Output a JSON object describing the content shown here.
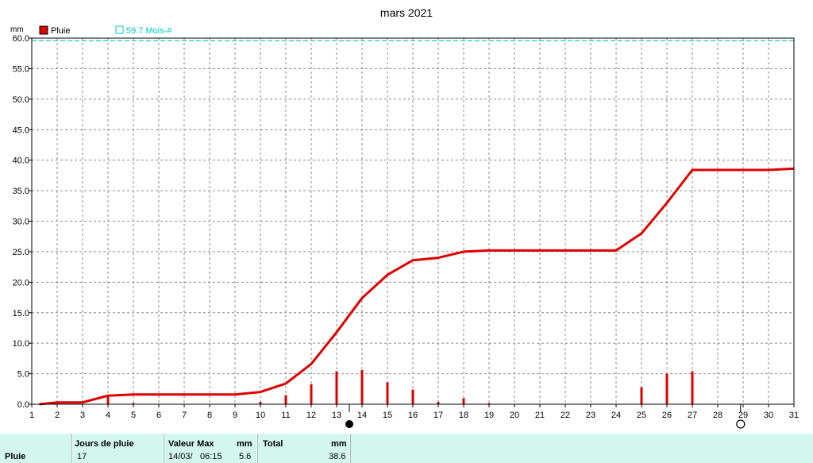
{
  "chart_data": {
    "type": "bar",
    "title": "mars 2021",
    "ylabel": "mm",
    "xlabel": "",
    "ylim": [
      0,
      60
    ],
    "xlim": [
      1,
      31
    ],
    "y_ticks": [
      "0.0",
      "5.0",
      "10.0",
      "15.0",
      "20.0",
      "25.0",
      "30.0",
      "35.0",
      "40.0",
      "45.0",
      "50.0",
      "55.0",
      "60.0"
    ],
    "x_ticks": [
      "1",
      "2",
      "3",
      "4",
      "5",
      "6",
      "7",
      "8",
      "9",
      "10",
      "11",
      "12",
      "13",
      "14",
      "15",
      "16",
      "17",
      "18",
      "19",
      "20",
      "21",
      "22",
      "23",
      "24",
      "25",
      "26",
      "27",
      "28",
      "29",
      "30",
      "31"
    ],
    "grid": true,
    "legend": [
      {
        "label": "Pluie",
        "color": "#e00000"
      },
      {
        "label": "59.7 Mois-#",
        "color": "#00c8c8"
      }
    ],
    "reference_line": {
      "label": "59.7 Mois-#",
      "value": 59.7,
      "color": "#40d0d0"
    },
    "series": [
      {
        "name": "Pluie",
        "kind": "bar",
        "color": "#e00000",
        "x": [
          4,
          5,
          10,
          11,
          12,
          13,
          14,
          15,
          16,
          17,
          18,
          19,
          25,
          26,
          27
        ],
        "values": [
          1.3,
          0.2,
          0.4,
          1.5,
          3.3,
          5.4,
          5.6,
          3.6,
          2.4,
          0.4,
          1.0,
          0.2,
          2.8,
          5.0,
          5.4
        ]
      },
      {
        "name": "Pluie",
        "kind": "line",
        "color": "#e00000",
        "x": [
          1.3,
          2,
          3,
          4,
          5,
          6,
          7,
          8,
          9,
          10,
          11,
          12,
          13,
          14,
          15,
          16,
          17,
          18,
          19,
          20,
          21,
          22,
          23,
          24,
          25,
          26,
          27,
          28,
          29,
          30,
          31
        ],
        "values": [
          0.0,
          0.3,
          0.3,
          1.4,
          1.6,
          1.6,
          1.6,
          1.6,
          1.6,
          2.0,
          3.4,
          6.6,
          11.8,
          17.4,
          21.2,
          23.6,
          24.0,
          25.0,
          25.2,
          25.2,
          25.2,
          25.2,
          25.2,
          25.2,
          28.0,
          33.0,
          38.4,
          38.4,
          38.4,
          38.4,
          38.6
        ]
      }
    ],
    "markers": [
      {
        "x": 13.5,
        "type": "filled-circle",
        "icon": "new-moon-icon"
      },
      {
        "x": 28.9,
        "type": "open-circle",
        "icon": "full-moon-icon"
      }
    ]
  },
  "summary": {
    "row_label": "Pluie",
    "headers": {
      "jours": "Jours de pluie",
      "valeur_max": "Valeur Max",
      "mm1": "mm",
      "total": "Total",
      "mm2": "mm"
    },
    "values": {
      "jours": "17",
      "date": "14/03/",
      "time": "06:15",
      "max": "5.6",
      "total": "38.6"
    }
  }
}
